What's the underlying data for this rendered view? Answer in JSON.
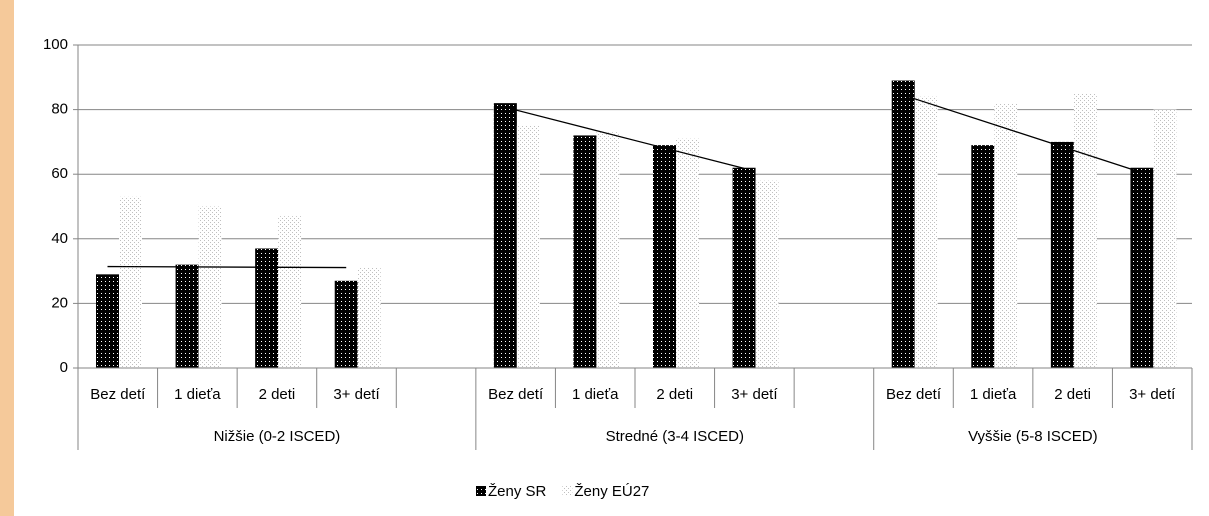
{
  "chart_data": {
    "type": "bar",
    "categories": [
      [
        "Nižšie (0-2 ISCED)",
        "Bez detí"
      ],
      [
        "Nižšie (0-2 ISCED)",
        "1 dieťa"
      ],
      [
        "Nižšie (0-2 ISCED)",
        "2 deti"
      ],
      [
        "Nižšie (0-2 ISCED)",
        "3+ detí"
      ],
      [
        "Nižšie (0-2 ISCED)",
        null
      ],
      [
        "Stredné (3-4 ISCED)",
        "Bez detí"
      ],
      [
        "Stredné (3-4 ISCED)",
        "1 dieťa"
      ],
      [
        "Stredné (3-4 ISCED)",
        "2 deti"
      ],
      [
        "Stredné (3-4 ISCED)",
        "3+ detí"
      ],
      [
        "Stredné (3-4 ISCED)",
        null
      ],
      [
        "Vyššie (5-8 ISCED)",
        "Bez detí"
      ],
      [
        "Vyššie (5-8 ISCED)",
        "1 dieťa"
      ],
      [
        "Vyššie (5-8 ISCED)",
        "2 deti"
      ],
      [
        "Vyššie (5-8 ISCED)",
        "3+ detí"
      ]
    ],
    "series": [
      {
        "name": "Ženy SR",
        "color": "#000000",
        "values": [
          29,
          32,
          37,
          27,
          null,
          82,
          72,
          69,
          62,
          null,
          89,
          69,
          70,
          62
        ]
      },
      {
        "name": "Ženy EÚ27",
        "color": "#bfbfbf",
        "values": [
          53,
          50,
          47,
          31,
          null,
          75,
          73,
          71,
          58,
          null,
          84,
          82,
          85,
          80
        ]
      }
    ],
    "trendline_series": 0,
    "ylim": [
      0,
      100
    ],
    "yticks": [
      0,
      20,
      40,
      60,
      80,
      100
    ],
    "grid": true,
    "legend": "bottom"
  }
}
